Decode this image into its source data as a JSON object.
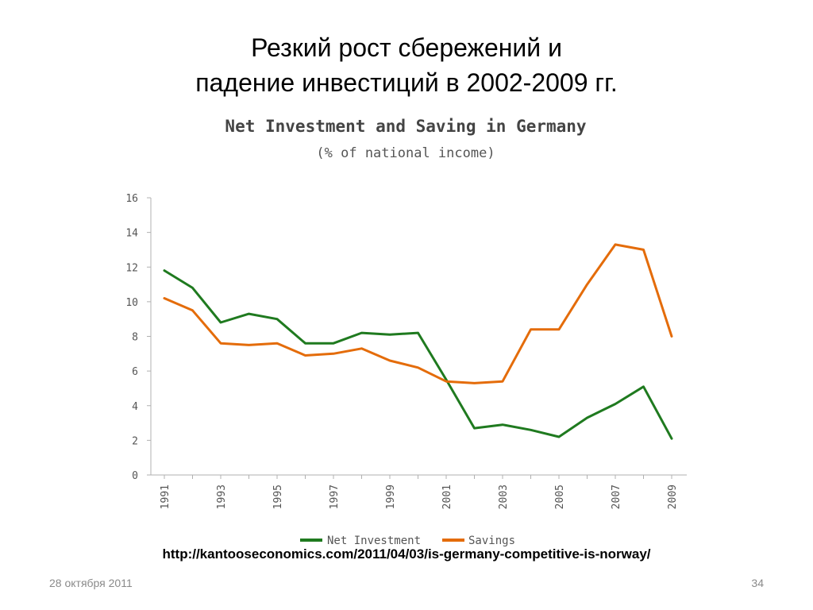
{
  "slide": {
    "title_line1": "Резкий рост сбережений и",
    "title_line2": "падение инвестиций в 2002-2009 гг.",
    "source": "http://kantooseconomics.com/2011/04/03/is-germany-competitive-is-norway/",
    "date": "28 октября 2011",
    "page_number": "34"
  },
  "chart_data": {
    "type": "line",
    "title": "Net Investment and Saving in Germany",
    "subtitle": "(% of national income)",
    "xlabel": "",
    "ylabel": "",
    "x": [
      1991,
      1992,
      1993,
      1994,
      1995,
      1996,
      1997,
      1998,
      1999,
      2000,
      2001,
      2002,
      2003,
      2004,
      2005,
      2006,
      2007,
      2008,
      2009
    ],
    "x_tick_labels": [
      "1991",
      "1993",
      "1995",
      "1997",
      "1999",
      "2001",
      "2003",
      "2005",
      "2007",
      "2009"
    ],
    "y_ticks": [
      0,
      2,
      4,
      6,
      8,
      10,
      12,
      14,
      16
    ],
    "ylim": [
      0,
      16
    ],
    "xlim": [
      1991,
      2009
    ],
    "grid": false,
    "legend_position": "bottom",
    "series": [
      {
        "name": "Net Investment",
        "color": "#1f7a1f",
        "values": [
          11.8,
          10.8,
          8.8,
          9.3,
          9.0,
          7.6,
          7.6,
          8.2,
          8.1,
          8.2,
          5.5,
          2.7,
          2.9,
          2.6,
          2.2,
          3.3,
          4.1,
          5.1,
          2.1
        ]
      },
      {
        "name": "Savings",
        "color": "#e46c0a",
        "values": [
          10.2,
          9.5,
          7.6,
          7.5,
          7.6,
          6.9,
          7.0,
          7.3,
          6.6,
          6.2,
          5.4,
          5.3,
          5.4,
          8.4,
          8.4,
          11.0,
          13.3,
          13.0,
          8.0
        ]
      }
    ]
  }
}
